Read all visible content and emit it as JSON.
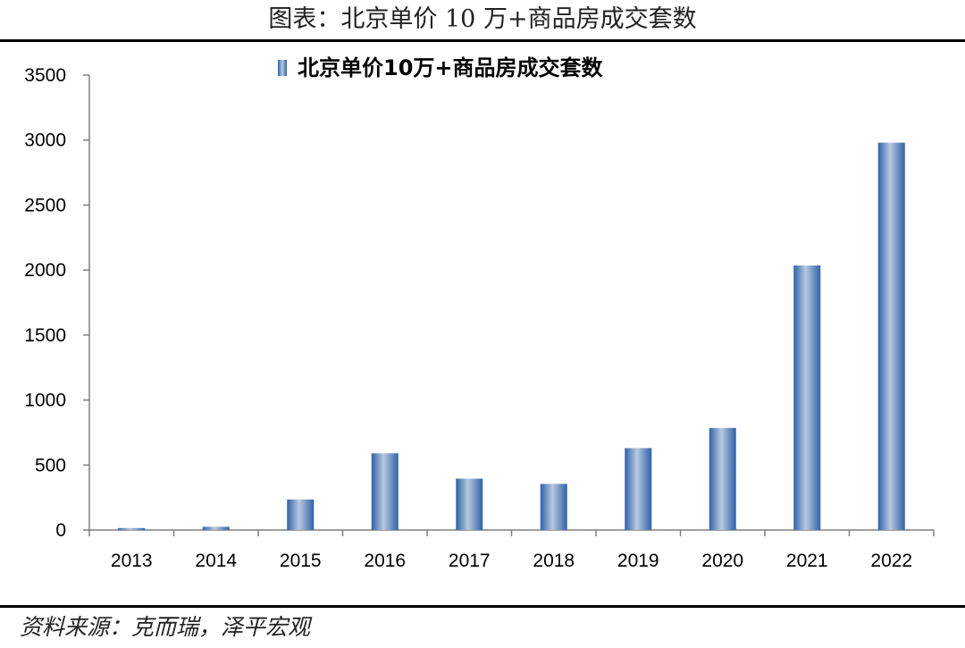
{
  "figure": {
    "title": "图表：北京单价 10 万+商品房成交套数",
    "source": "资料来源：克而瑞，泽平宏观"
  },
  "chart_data": {
    "type": "bar",
    "categories": [
      "2013",
      "2014",
      "2015",
      "2016",
      "2017",
      "2018",
      "2019",
      "2020",
      "2021",
      "2022"
    ],
    "series": [
      {
        "name": "北京单价10万+商品房成交套数",
        "values": [
          15,
          25,
          235,
          590,
          395,
          355,
          630,
          785,
          2035,
          2980
        ],
        "color": "#3a6eb5"
      }
    ],
    "xlabel": "",
    "ylabel": "",
    "ylim": [
      0,
      3500
    ],
    "yticks": [
      0,
      500,
      1000,
      1500,
      2000,
      2500,
      3000,
      3500
    ],
    "grid": false,
    "legend": "top-center"
  }
}
